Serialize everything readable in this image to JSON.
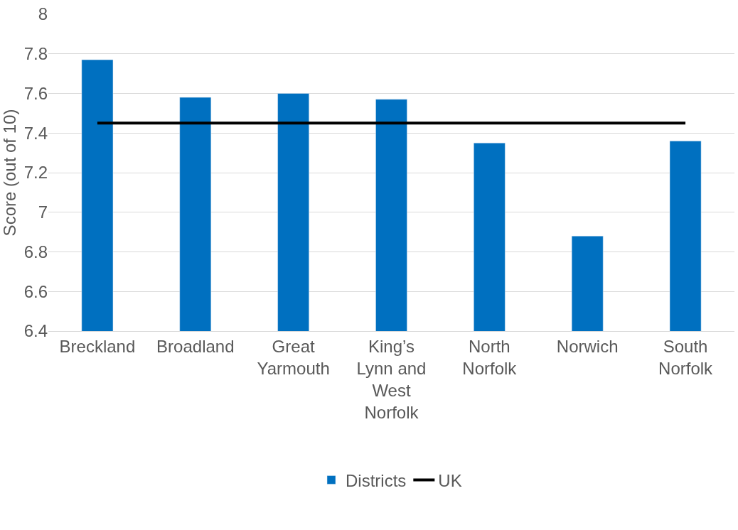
{
  "chart_data": {
    "type": "bar",
    "ylabel": "Score (out of 10)",
    "categories": [
      "Breckland",
      "Broadland",
      "Great Yarmouth",
      "King’s Lynn and West Norfolk",
      "North Norfolk",
      "Norwich",
      "South Norfolk"
    ],
    "series": [
      {
        "name": "Districts",
        "color": "#0070c0",
        "values": [
          7.77,
          7.58,
          7.6,
          7.57,
          7.35,
          6.88,
          7.36
        ]
      },
      {
        "name": "UK",
        "type": "line",
        "color": "#000000",
        "values": [
          7.45,
          7.45,
          7.45,
          7.45,
          7.45,
          7.45,
          7.45
        ]
      }
    ],
    "ylim": [
      6.4,
      8
    ],
    "yticks": [
      6.4,
      6.6,
      6.8,
      7,
      7.2,
      7.4,
      7.6,
      7.8,
      8
    ],
    "grid": "y",
    "legend": "bottom",
    "marker": "none",
    "line_style": "solid"
  }
}
